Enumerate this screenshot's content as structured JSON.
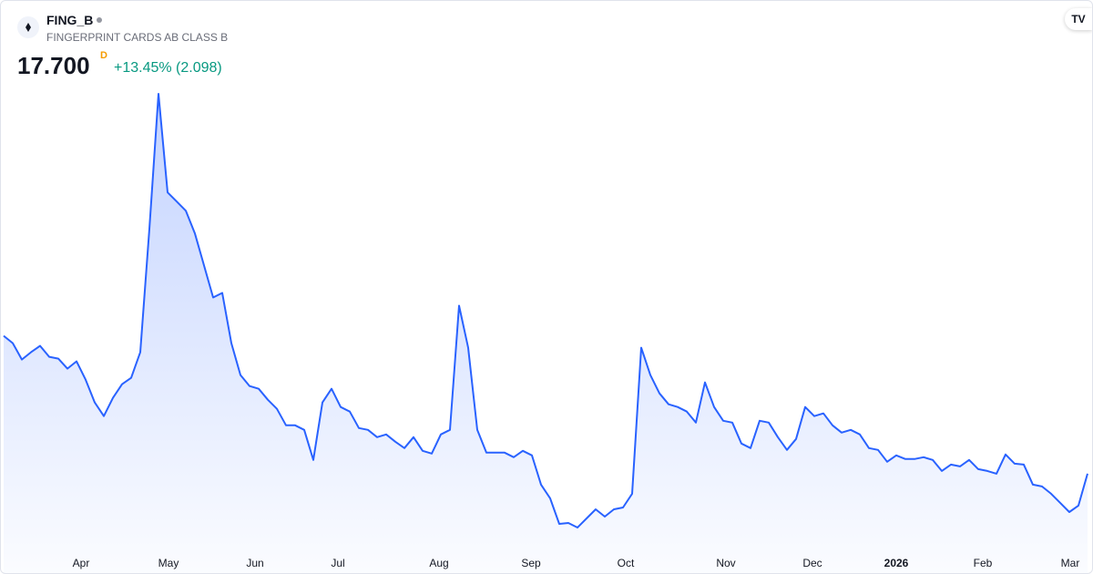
{
  "chart_data": {
    "type": "area",
    "symbol": "FING_B",
    "title": "FINGERPRINT CARDS AB CLASS B",
    "price": "17.700",
    "interval": "D",
    "change": "+13.45% (2.098)",
    "color": "#2962ff",
    "values": [
      26.76,
      26.28,
      25.2,
      25.68,
      26.1,
      25.38,
      25.26,
      24.6,
      25.08,
      23.88,
      22.38,
      21.48,
      22.68,
      23.58,
      24.0,
      25.68,
      33.78,
      42.66,
      36.18,
      35.58,
      34.98,
      33.48,
      31.38,
      29.28,
      29.58,
      26.28,
      24.18,
      23.46,
      23.28,
      22.56,
      21.96,
      20.88,
      20.88,
      20.58,
      18.6,
      22.38,
      23.28,
      22.08,
      21.78,
      20.7,
      20.58,
      20.1,
      20.28,
      19.8,
      19.38,
      20.1,
      19.2,
      19.02,
      20.28,
      20.58,
      28.74,
      25.98,
      20.58,
      19.08,
      19.08,
      19.08,
      18.78,
      19.2,
      18.9,
      16.98,
      16.08,
      14.4,
      14.46,
      14.16,
      14.76,
      15.36,
      14.88,
      15.36,
      15.48,
      16.38,
      25.98,
      24.18,
      22.98,
      22.26,
      22.08,
      21.78,
      21.06,
      23.7,
      22.08,
      21.18,
      21.06,
      19.68,
      19.38,
      21.18,
      21.06,
      20.1,
      19.26,
      19.98,
      22.08,
      21.48,
      21.66,
      20.88,
      20.4,
      20.58,
      20.28,
      19.38,
      19.26,
      18.48,
      18.9,
      18.66,
      18.66,
      18.78,
      18.6,
      17.88,
      18.3,
      18.18,
      18.6,
      18.0,
      17.88,
      17.7,
      18.96,
      18.36,
      18.3,
      16.98,
      16.86,
      16.38,
      15.78,
      15.18,
      15.6,
      17.7
    ],
    "xticks": [
      {
        "value": 8.5,
        "label": "Apr"
      },
      {
        "value": 18.1,
        "label": "May"
      },
      {
        "value": 27.6,
        "label": "Jun"
      },
      {
        "value": 36.7,
        "label": "Jul"
      },
      {
        "value": 47.8,
        "label": "Aug"
      },
      {
        "value": 57.9,
        "label": "Sep"
      },
      {
        "value": 68.3,
        "label": "Oct"
      },
      {
        "value": 79.3,
        "label": "Nov"
      },
      {
        "value": 88.8,
        "label": "Dec"
      },
      {
        "value": 98,
        "label": "2026"
      },
      {
        "value": 107.5,
        "label": "Feb"
      },
      {
        "value": 117.1,
        "label": "Mar"
      }
    ]
  }
}
